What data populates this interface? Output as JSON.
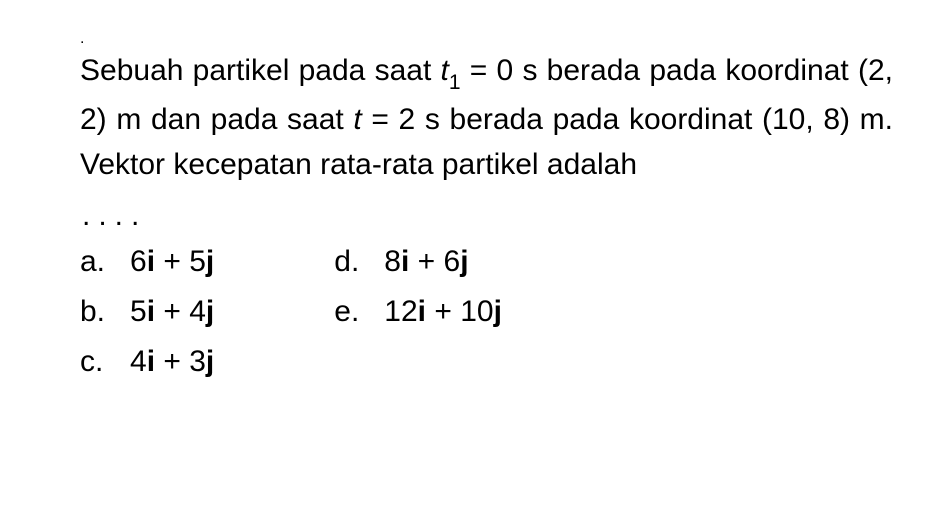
{
  "question": {
    "line1_prefix": "Sebuah partikel pada saat ",
    "var_t": "t",
    "sub_1": "1",
    "eq_part": " = 0 s berada",
    "line2": "pada koordinat (2, 2) m dan pada saat",
    "line3_prefix": "",
    "var_t2": "t",
    "line3_eq": " = 2 s berada pada koordinat (10, 8) m.",
    "line4": "Vektor kecepatan rata-rata partikel adalah",
    "ellipsis": "...."
  },
  "options": {
    "a": {
      "letter": "a.",
      "n1": "6",
      "n2": "5"
    },
    "b": {
      "letter": "b.",
      "n1": "5",
      "n2": "4"
    },
    "c": {
      "letter": "c.",
      "n1": "4",
      "n2": "3"
    },
    "d": {
      "letter": "d.",
      "n1": "8",
      "n2": "6"
    },
    "e": {
      "letter": "e.",
      "n1": "12",
      "n2": "10"
    }
  },
  "style": {
    "font_size_main": 30,
    "text_color": "#000000",
    "background_color": "#ffffff",
    "sub_scale": 0.7
  }
}
